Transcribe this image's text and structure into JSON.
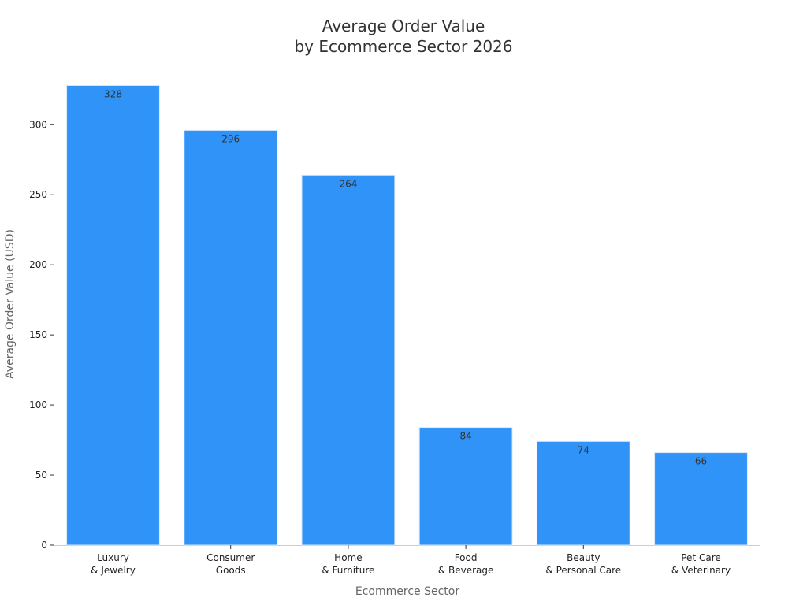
{
  "chart_data": {
    "type": "bar",
    "title": [
      "Average Order Value",
      "by Ecommerce Sector 2026"
    ],
    "xlabel": "Ecommerce Sector",
    "ylabel": "Average Order Value (USD)",
    "categories": [
      [
        "Luxury",
        "& Jewelry"
      ],
      [
        "Consumer",
        "Goods"
      ],
      [
        "Home",
        "& Furniture"
      ],
      [
        "Food",
        "& Beverage"
      ],
      [
        "Beauty",
        "& Personal Care"
      ],
      [
        "Pet Care",
        "& Veterinary"
      ]
    ],
    "values": [
      328,
      296,
      264,
      84,
      74,
      66
    ],
    "ylim": [
      0,
      344
    ],
    "yticks": [
      0,
      50,
      100,
      150,
      200,
      250,
      300
    ],
    "bar_color": "#3093f8",
    "bar_edge_color": "#d8e8fb",
    "grid": false,
    "legend": "none"
  }
}
